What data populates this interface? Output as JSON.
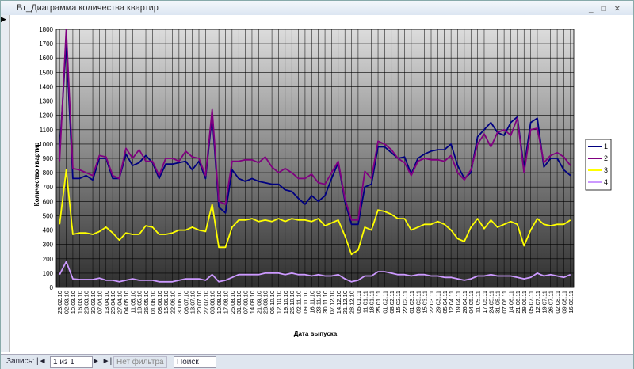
{
  "window": {
    "title": "Вт_Диаграмма количества квартир"
  },
  "status_bar": {
    "record_label": "Запись:",
    "record_position": "1 из 1",
    "filter": "Нет фильтра",
    "search": "Поиск"
  },
  "chart_data": {
    "type": "line",
    "xlabel": "Дата выпуска",
    "ylabel": "Количество квартир",
    "categories": [
      "23.02.10",
      "02.03.10",
      "10.03.10",
      "16.03.10",
      "23.03.10",
      "30.03.10",
      "07.04.10",
      "13.04.10",
      "20.04.10",
      "27.04.10",
      "04.05.10",
      "11.05.10",
      "18.05.10",
      "26.05.10",
      "01.06.10",
      "08.06.10",
      "15.06.10",
      "22.06.10",
      "30.06.10",
      "06.07.10",
      "13.07.10",
      "20.07.10",
      "27.07.10",
      "03.08.10",
      "10.08.10",
      "17.08.10",
      "25.08.10",
      "31.08.10",
      "07.09.10",
      "14.09.10",
      "21.09.10",
      "28.09.10",
      "05.10.10",
      "12.10.10",
      "19.10.10",
      "26.10.10",
      "02.11.10",
      "09.11.10",
      "16.11.10",
      "23.11.10",
      "30.11.10",
      "07.12.10",
      "14.12.10",
      "21.12.10",
      "28.12.10",
      "05.01.11",
      "11.01.11",
      "18.01.11",
      "25.01.11",
      "01.02.11",
      "08.02.11",
      "15.02.11",
      "22.02.11",
      "01.03.11",
      "09.03.11",
      "15.03.11",
      "22.03.11",
      "29.03.11",
      "05.04.11",
      "12.04.11",
      "19.04.11",
      "26.04.11",
      "04.05.11",
      "11.05.11",
      "17.05.11",
      "24.05.11",
      "31.05.11",
      "07.06.11",
      "14.06.11",
      "21.06.11",
      "29.06.11",
      "05.07.11",
      "12.07.11",
      "19.07.11",
      "26.07.11",
      "02.08.11",
      "09.08.11",
      "16.08.11"
    ],
    "series": [
      {
        "name": "1",
        "color": "#000080",
        "values": [
          950,
          1700,
          760,
          760,
          780,
          750,
          900,
          900,
          760,
          760,
          930,
          850,
          870,
          920,
          870,
          760,
          860,
          860,
          870,
          880,
          820,
          880,
          760,
          1200,
          560,
          520,
          820,
          760,
          740,
          760,
          740,
          730,
          720,
          720,
          680,
          670,
          620,
          580,
          640,
          600,
          640,
          760,
          870,
          600,
          440,
          440,
          700,
          720,
          980,
          980,
          940,
          900,
          910,
          790,
          900,
          930,
          950,
          960,
          960,
          1000,
          850,
          760,
          800,
          1050,
          1100,
          1150,
          1080,
          1060,
          1150,
          1190,
          830,
          1150,
          1180,
          840,
          900,
          900,
          820,
          780
        ]
      },
      {
        "name": "2",
        "color": "#800080",
        "values": [
          880,
          1800,
          830,
          820,
          800,
          780,
          920,
          910,
          780,
          760,
          970,
          900,
          960,
          880,
          880,
          780,
          900,
          900,
          880,
          950,
          910,
          900,
          780,
          1240,
          600,
          580,
          880,
          880,
          890,
          890,
          870,
          910,
          840,
          800,
          830,
          800,
          760,
          760,
          790,
          730,
          720,
          800,
          880,
          620,
          470,
          470,
          810,
          760,
          1020,
          1000,
          960,
          900,
          870,
          780,
          880,
          900,
          890,
          890,
          880,
          920,
          800,
          750,
          820,
          1000,
          1070,
          980,
          1080,
          1100,
          1060,
          1180,
          800,
          1100,
          1110,
          870,
          920,
          940,
          910,
          850
        ]
      },
      {
        "name": "3",
        "color": "#ffff00",
        "values": [
          440,
          820,
          370,
          380,
          380,
          370,
          390,
          420,
          380,
          330,
          380,
          370,
          370,
          430,
          420,
          370,
          370,
          380,
          400,
          400,
          420,
          400,
          390,
          580,
          280,
          280,
          420,
          470,
          470,
          480,
          460,
          470,
          460,
          480,
          460,
          480,
          470,
          470,
          460,
          480,
          430,
          450,
          470,
          360,
          230,
          260,
          420,
          400,
          540,
          530,
          510,
          480,
          480,
          400,
          420,
          440,
          440,
          460,
          440,
          400,
          340,
          320,
          420,
          480,
          410,
          470,
          420,
          440,
          460,
          440,
          290,
          400,
          480,
          440,
          430,
          440,
          440,
          470
        ]
      },
      {
        "name": "4",
        "color": "#cc99ff",
        "values": [
          90,
          180,
          60,
          55,
          55,
          55,
          65,
          50,
          50,
          40,
          50,
          60,
          50,
          50,
          50,
          40,
          40,
          40,
          50,
          60,
          60,
          60,
          50,
          90,
          40,
          50,
          70,
          90,
          90,
          90,
          90,
          100,
          100,
          100,
          90,
          100,
          90,
          90,
          80,
          90,
          80,
          80,
          90,
          60,
          40,
          50,
          80,
          80,
          110,
          110,
          100,
          90,
          90,
          80,
          90,
          90,
          80,
          80,
          70,
          70,
          60,
          50,
          60,
          80,
          80,
          90,
          80,
          80,
          80,
          70,
          60,
          70,
          100,
          80,
          90,
          80,
          70,
          90
        ]
      }
    ],
    "ylim": [
      0,
      1800
    ],
    "yticks": [
      0,
      100,
      200,
      300,
      400,
      500,
      600,
      700,
      800,
      900,
      1000,
      1100,
      1200,
      1300,
      1400,
      1500,
      1600,
      1700,
      1800
    ],
    "grid": true
  }
}
